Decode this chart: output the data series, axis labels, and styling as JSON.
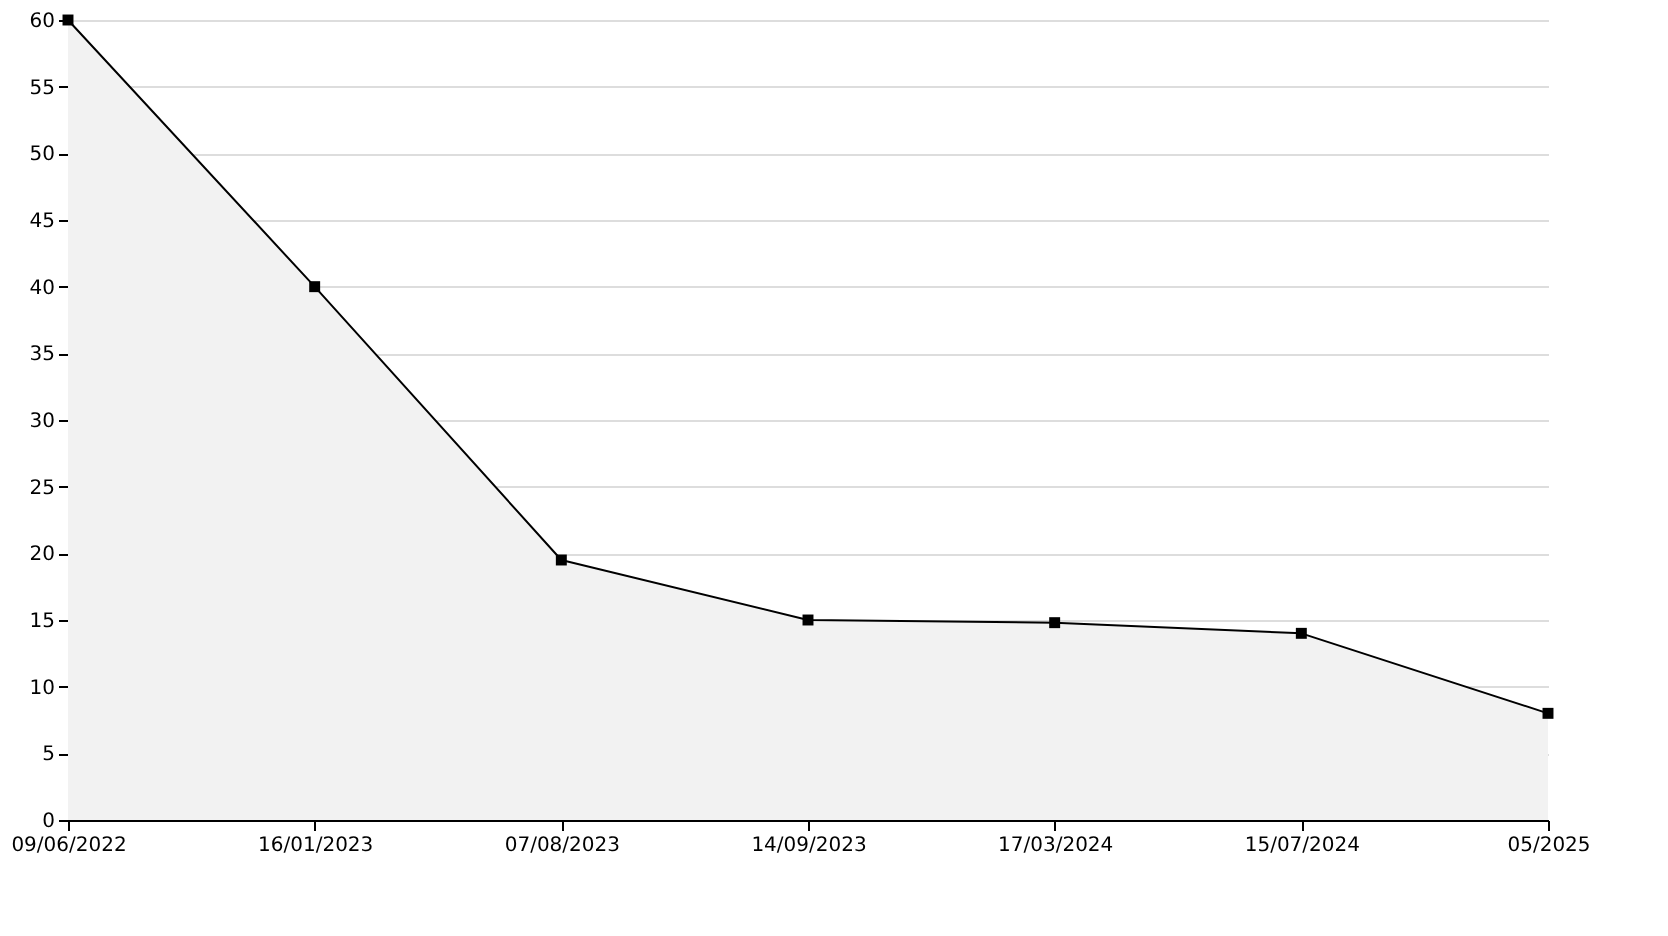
{
  "chart_data": {
    "type": "area",
    "categories": [
      "09/06/2022",
      "16/01/2023",
      "07/08/2023",
      "14/09/2023",
      "17/03/2024",
      "15/07/2024",
      "05/2025"
    ],
    "series": [
      {
        "color": "#000000",
        "values": [
          60,
          40,
          19.5,
          15,
          14.8,
          14,
          8
        ]
      }
    ],
    "ylim": [
      0,
      60
    ],
    "yticks": [
      0,
      5,
      10,
      15,
      20,
      25,
      30,
      35,
      40,
      45,
      50,
      55,
      60
    ],
    "grid": "y",
    "marker": "square",
    "line_style": "solid"
  }
}
